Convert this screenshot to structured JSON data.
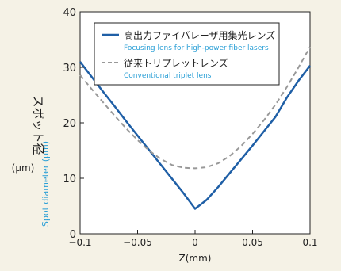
{
  "chart_data": {
    "type": "line",
    "xlabel": "Z(mm)",
    "ylabel_jp": "スポット径",
    "ylabel_unit": "(µm)",
    "ylabel_en": "Spot diameter (µm)",
    "xlim": [
      -0.1,
      0.1
    ],
    "ylim": [
      0,
      40
    ],
    "x_ticks": [
      -0.1,
      -0.05,
      0,
      0.05,
      0.1
    ],
    "x_tick_labels": [
      "−0.1",
      "−0.05",
      "0",
      "0.05",
      "0.1"
    ],
    "y_ticks": [
      0,
      10,
      20,
      30,
      40
    ],
    "y_tick_labels": [
      "0",
      "10",
      "20",
      "30",
      "40"
    ],
    "grid": false,
    "legend_position": "top-right",
    "series": [
      {
        "name": "高出力ファイバレーザ用集光レンズ",
        "name_en": "Focusing lens for high-power fiber lasers",
        "color": "#1f5fa6",
        "style": "solid",
        "x": [
          -0.1,
          -0.09,
          -0.08,
          -0.07,
          -0.06,
          -0.05,
          -0.04,
          -0.03,
          -0.02,
          -0.01,
          0,
          0.01,
          0.02,
          0.03,
          0.04,
          0.05,
          0.06,
          0.07,
          0.08,
          0.09,
          0.1
        ],
        "y": [
          31.0,
          28.3,
          25.6,
          23.0,
          20.3,
          17.7,
          15.1,
          12.5,
          9.9,
          7.3,
          4.5,
          6.1,
          8.4,
          10.9,
          13.4,
          15.9,
          18.5,
          21.1,
          24.6,
          27.6,
          30.3
        ]
      },
      {
        "name": "従来トリプレットレンズ",
        "name_en": "Conventional triplet lens",
        "color": "#999999",
        "style": "dashed",
        "x": [
          -0.1,
          -0.09,
          -0.08,
          -0.07,
          -0.06,
          -0.05,
          -0.04,
          -0.03,
          -0.02,
          -0.01,
          0,
          0.01,
          0.02,
          0.03,
          0.04,
          0.05,
          0.06,
          0.07,
          0.08,
          0.09,
          0.1
        ],
        "y": [
          28.6,
          26.1,
          23.7,
          21.3,
          19.0,
          16.9,
          15.0,
          13.5,
          12.4,
          11.9,
          11.8,
          12.0,
          12.7,
          14.0,
          15.8,
          18.0,
          20.5,
          23.3,
          26.5,
          30.0,
          33.7
        ]
      }
    ]
  }
}
